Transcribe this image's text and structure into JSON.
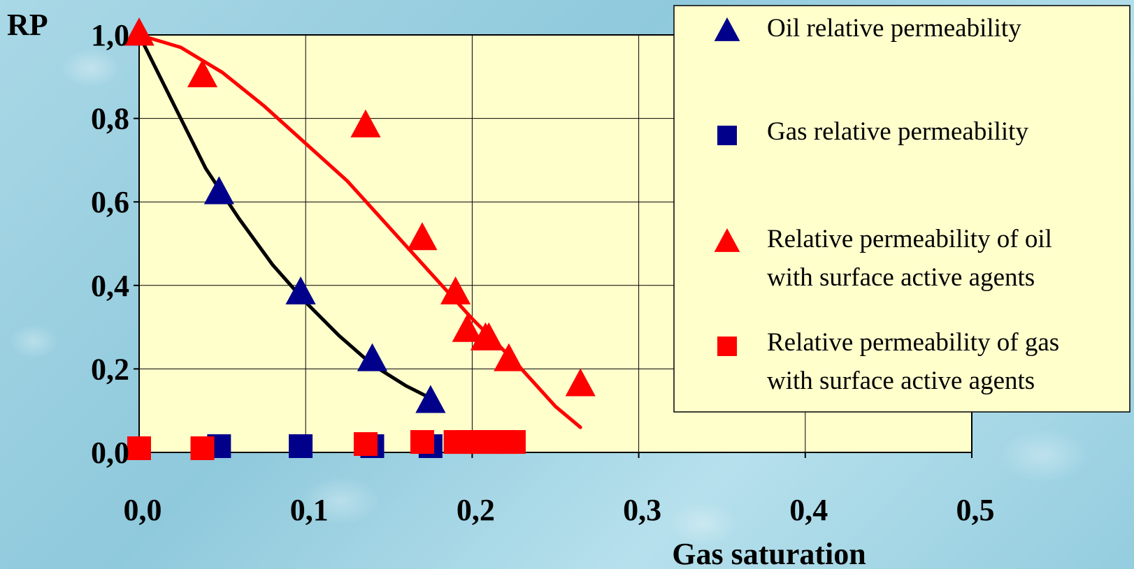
{
  "chart_data": {
    "type": "scatter",
    "title": "",
    "xlabel": "Gas saturation",
    "ylabel": "RP",
    "xlim": [
      0,
      0.5
    ],
    "ylim": [
      0,
      1
    ],
    "x_ticks": [
      "0,0",
      "0,1",
      "0,2",
      "0,3",
      "0,4",
      "0,5"
    ],
    "y_ticks": [
      "0,0",
      "0,2",
      "0,4",
      "0,6",
      "0,8",
      "1,0"
    ],
    "grid": true,
    "legend_position": "top-right",
    "series": [
      {
        "name": "Oil relative permeability",
        "marker": "triangle",
        "color": "#00008b",
        "x": [
          0.0,
          0.048,
          0.097,
          0.14,
          0.175
        ],
        "y": [
          1.0,
          0.62,
          0.38,
          0.22,
          0.12
        ]
      },
      {
        "name": "Gas relative permeability",
        "marker": "square",
        "color": "#00008b",
        "x": [
          0.048,
          0.097,
          0.14,
          0.175
        ],
        "y": [
          0.015,
          0.015,
          0.015,
          0.015
        ]
      },
      {
        "name": "Relative permeability of oil with surface active agents",
        "marker": "triangle",
        "color": "#ff0000",
        "x": [
          0.0,
          0.038,
          0.136,
          0.17,
          0.19,
          0.197,
          0.208,
          0.21,
          0.222,
          0.265
        ],
        "y": [
          1.0,
          0.9,
          0.78,
          0.51,
          0.38,
          0.29,
          0.27,
          0.27,
          0.22,
          0.16
        ]
      },
      {
        "name": "Relative permeability of gas with surface active agents",
        "marker": "square",
        "color": "#ff0000",
        "x": [
          0.0,
          0.038,
          0.136,
          0.17,
          0.19,
          0.198,
          0.205,
          0.212,
          0.219,
          0.225
        ],
        "y": [
          0.01,
          0.01,
          0.02,
          0.025,
          0.025,
          0.025,
          0.025,
          0.025,
          0.025,
          0.025
        ]
      }
    ],
    "trend_lines": [
      {
        "color": "#000000",
        "x": [
          0.0,
          0.02,
          0.04,
          0.06,
          0.08,
          0.1,
          0.12,
          0.14,
          0.16,
          0.175
        ],
        "y": [
          1.0,
          0.84,
          0.68,
          0.56,
          0.45,
          0.36,
          0.28,
          0.21,
          0.16,
          0.13
        ]
      },
      {
        "color": "#ff0000",
        "x": [
          0.0,
          0.025,
          0.05,
          0.075,
          0.1,
          0.125,
          0.15,
          0.175,
          0.2,
          0.225,
          0.25,
          0.265
        ],
        "y": [
          1.0,
          0.97,
          0.91,
          0.83,
          0.74,
          0.65,
          0.54,
          0.43,
          0.32,
          0.22,
          0.11,
          0.06
        ]
      }
    ],
    "colors": {
      "plot_bg": "#ffffcc",
      "legend_bg": "#ffffcc",
      "grid": "#000000"
    }
  }
}
